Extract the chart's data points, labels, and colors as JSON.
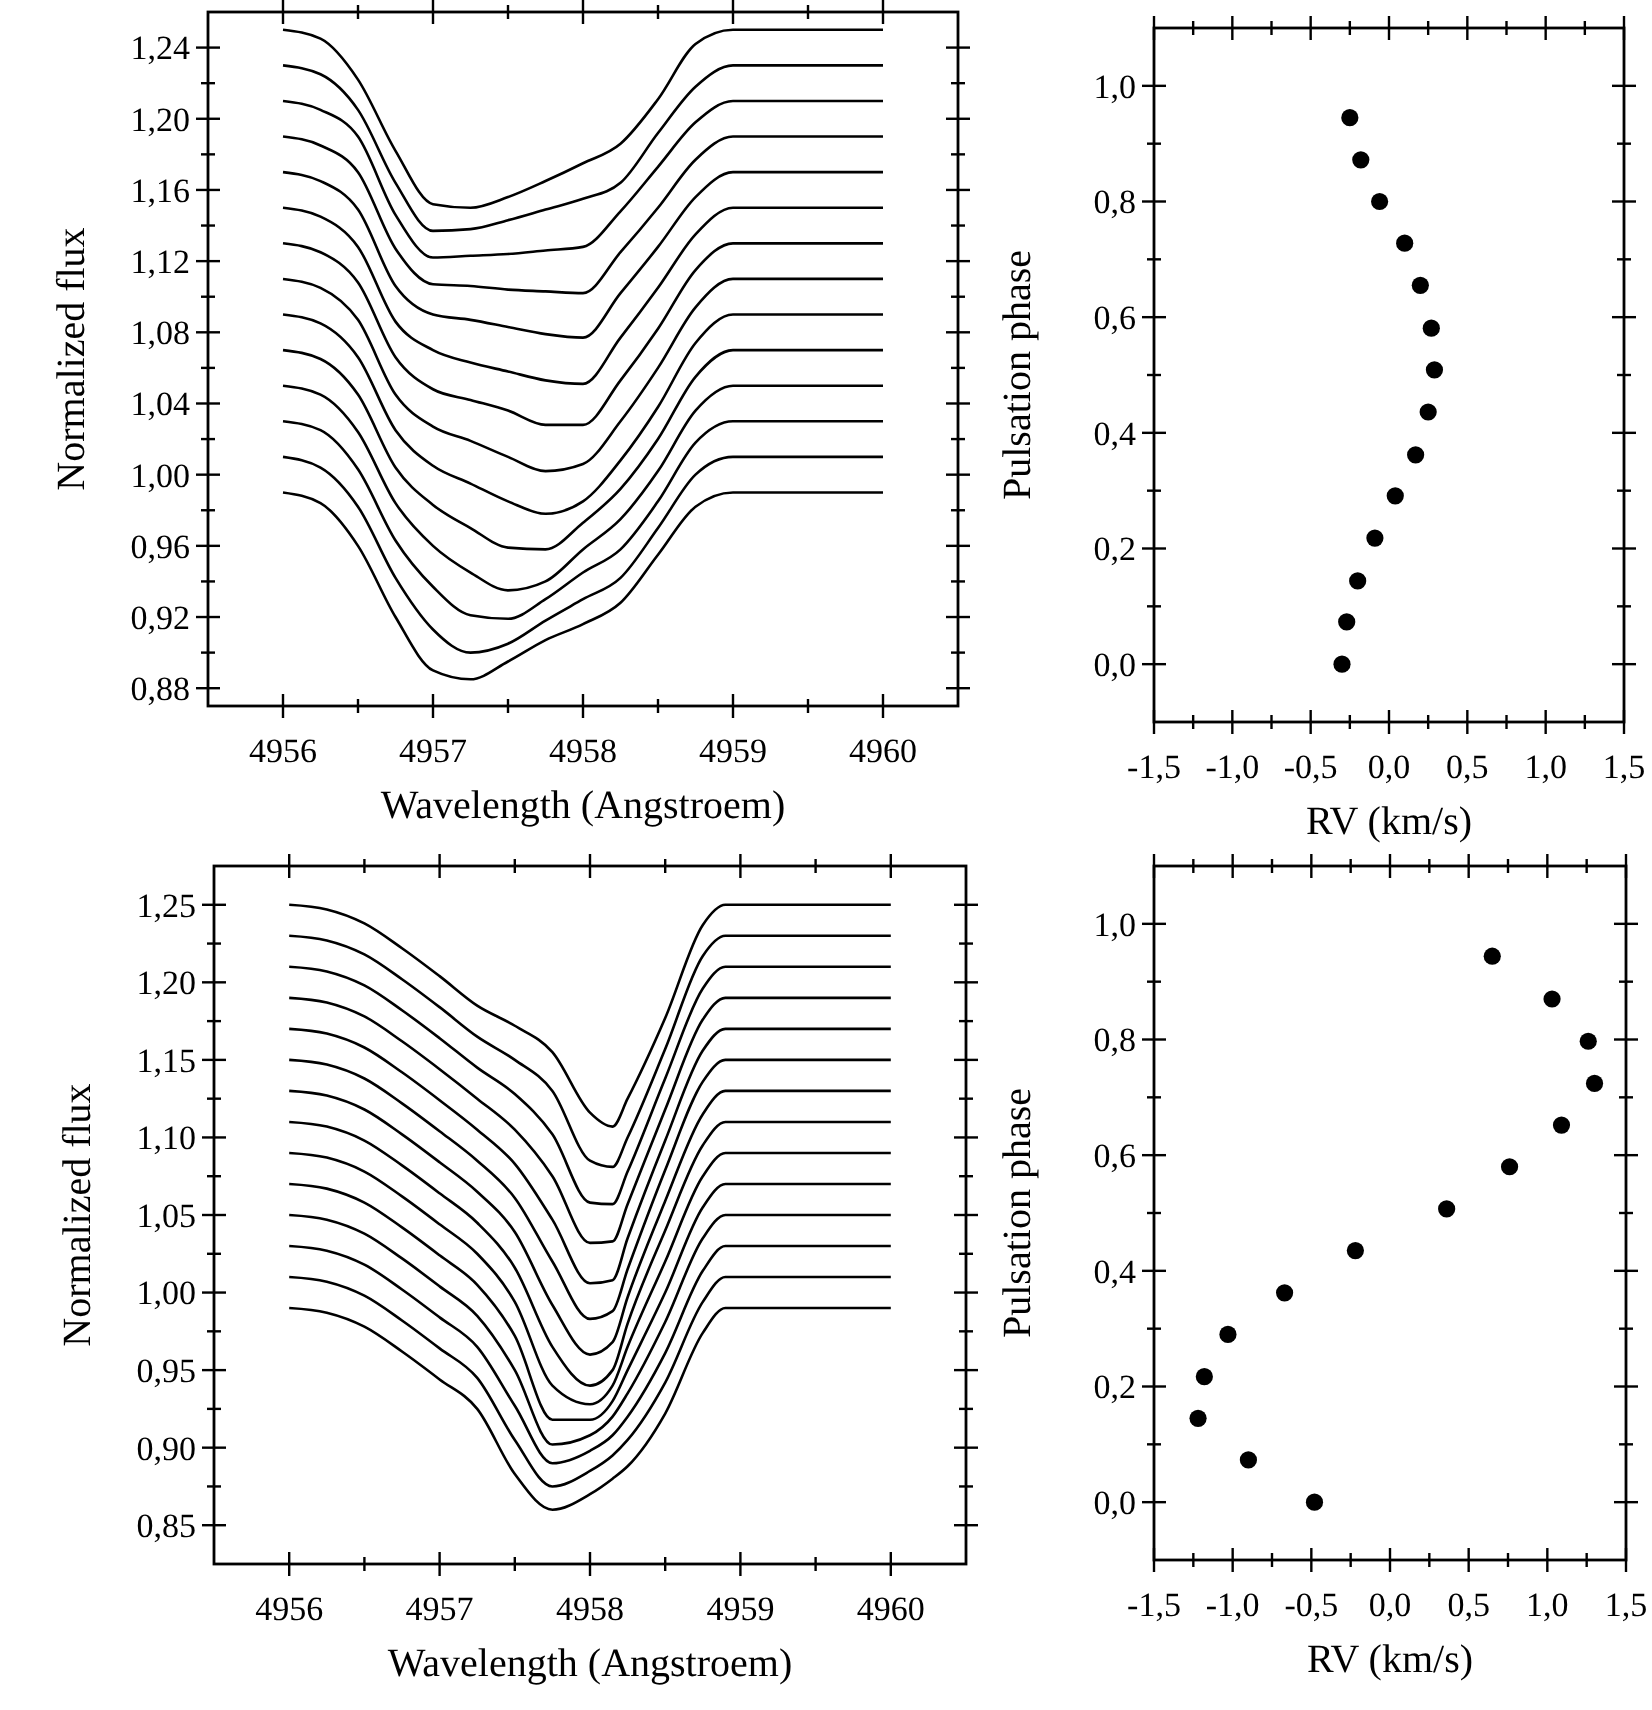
{
  "chart_data": [
    {
      "type": "line",
      "xlabel": "Wavelength (Angstroem)",
      "ylabel": "Normalized flux",
      "marker": "none",
      "line_style": "solid",
      "grid": false,
      "xlim": [
        4955.5,
        4960.5
      ],
      "ylim": [
        0.87,
        1.26
      ],
      "xticks": [
        {
          "value": 4956,
          "label": "4956"
        },
        {
          "value": 4956.5,
          "label": null
        },
        {
          "value": 4957,
          "label": "4957"
        },
        {
          "value": 4957.5,
          "label": null
        },
        {
          "value": 4958,
          "label": "4958"
        },
        {
          "value": 4958.5,
          "label": null
        },
        {
          "value": 4959,
          "label": "4959"
        },
        {
          "value": 4959.5,
          "label": null
        },
        {
          "value": 4960,
          "label": "4960"
        }
      ],
      "yticks": [
        {
          "value": 0.88,
          "label": "0,88"
        },
        {
          "value": 0.9,
          "label": null
        },
        {
          "value": 0.92,
          "label": "0,92"
        },
        {
          "value": 0.94,
          "label": null
        },
        {
          "value": 0.96,
          "label": "0,96"
        },
        {
          "value": 0.98,
          "label": null
        },
        {
          "value": 1.0,
          "label": "1,00"
        },
        {
          "value": 1.02,
          "label": null
        },
        {
          "value": 1.04,
          "label": "1,04"
        },
        {
          "value": 1.06,
          "label": null
        },
        {
          "value": 1.08,
          "label": "1,08"
        },
        {
          "value": 1.1,
          "label": null
        },
        {
          "value": 1.12,
          "label": "1,12"
        },
        {
          "value": 1.14,
          "label": null
        },
        {
          "value": 1.16,
          "label": "1,16"
        },
        {
          "value": 1.18,
          "label": null
        },
        {
          "value": 1.2,
          "label": "1,20"
        },
        {
          "value": 1.22,
          "label": null
        },
        {
          "value": 1.24,
          "label": "1,24"
        }
      ],
      "x": [
        4956,
        4956.25,
        4956.5,
        4956.75,
        4957,
        4957.25,
        4957.5,
        4957.75,
        4958,
        4958.25,
        4958.5,
        4958.75,
        4959,
        4960
      ],
      "series": [
        {
          "color": "#000000",
          "values": [
            0.99,
            0.984,
            0.96,
            0.92,
            0.89,
            0.885,
            0.895,
            0.907,
            0.916,
            0.928,
            0.955,
            0.982,
            0.99,
            0.99
          ]
        },
        {
          "color": "#000000",
          "values": [
            1.01,
            1.004,
            0.982,
            0.942,
            0.913,
            0.9,
            0.905,
            0.918,
            0.93,
            0.942,
            0.97,
            1.0,
            1.01,
            1.01
          ]
        },
        {
          "color": "#000000",
          "values": [
            1.03,
            1.025,
            1.003,
            0.963,
            0.937,
            0.921,
            0.919,
            0.93,
            0.945,
            0.958,
            0.985,
            1.018,
            1.03,
            1.03
          ]
        },
        {
          "color": "#000000",
          "values": [
            1.05,
            1.045,
            1.024,
            0.984,
            0.96,
            0.945,
            0.935,
            0.94,
            0.958,
            0.975,
            1.002,
            1.036,
            1.05,
            1.05
          ]
        },
        {
          "color": "#000000",
          "values": [
            1.07,
            1.065,
            1.045,
            1.004,
            0.983,
            0.97,
            0.959,
            0.958,
            0.973,
            0.992,
            1.02,
            1.055,
            1.07,
            1.07
          ]
        },
        {
          "color": "#000000",
          "values": [
            1.09,
            1.085,
            1.066,
            1.025,
            1.005,
            0.995,
            0.985,
            0.978,
            0.985,
            1.008,
            1.038,
            1.074,
            1.09,
            1.09
          ]
        },
        {
          "color": "#000000",
          "values": [
            1.11,
            1.105,
            1.087,
            1.045,
            1.027,
            1.019,
            1.01,
            1.002,
            1.006,
            1.03,
            1.06,
            1.094,
            1.11,
            1.11
          ]
        },
        {
          "color": "#000000",
          "values": [
            1.13,
            1.125,
            1.108,
            1.066,
            1.048,
            1.042,
            1.036,
            1.028,
            1.028,
            1.053,
            1.082,
            1.115,
            1.13,
            1.13
          ]
        },
        {
          "color": "#000000",
          "values": [
            1.15,
            1.145,
            1.128,
            1.086,
            1.07,
            1.063,
            1.058,
            1.053,
            1.051,
            1.077,
            1.105,
            1.135,
            1.15,
            1.15
          ]
        },
        {
          "color": "#000000",
          "values": [
            1.17,
            1.165,
            1.149,
            1.106,
            1.09,
            1.087,
            1.083,
            1.079,
            1.077,
            1.102,
            1.128,
            1.156,
            1.17,
            1.17
          ]
        },
        {
          "color": "#000000",
          "values": [
            1.19,
            1.185,
            1.17,
            1.127,
            1.107,
            1.106,
            1.104,
            1.103,
            1.102,
            1.125,
            1.15,
            1.177,
            1.19,
            1.19
          ]
        },
        {
          "color": "#000000",
          "values": [
            1.21,
            1.205,
            1.19,
            1.146,
            1.122,
            1.123,
            1.124,
            1.126,
            1.128,
            1.148,
            1.173,
            1.198,
            1.21,
            1.21
          ]
        },
        {
          "color": "#000000",
          "values": [
            1.23,
            1.225,
            1.205,
            1.164,
            1.137,
            1.138,
            1.143,
            1.149,
            1.155,
            1.164,
            1.192,
            1.218,
            1.23,
            1.23
          ]
        },
        {
          "color": "#000000",
          "values": [
            1.25,
            1.245,
            1.222,
            1.182,
            1.152,
            1.15,
            1.156,
            1.165,
            1.175,
            1.186,
            1.211,
            1.242,
            1.25,
            1.25
          ]
        }
      ]
    },
    {
      "type": "scatter",
      "xlabel": "RV (km/s)",
      "ylabel": "Pulsation phase",
      "marker": "circle",
      "grid": false,
      "xlim": [
        -1.5,
        1.5
      ],
      "ylim": [
        -0.1,
        1.1
      ],
      "xticks": [
        {
          "value": -1.5,
          "label": "-1,5"
        },
        {
          "value": -1.25,
          "label": null
        },
        {
          "value": -1.0,
          "label": "-1,0"
        },
        {
          "value": -0.75,
          "label": null
        },
        {
          "value": -0.5,
          "label": "-0,5"
        },
        {
          "value": -0.25,
          "label": null
        },
        {
          "value": 0,
          "label": "0,0"
        },
        {
          "value": 0.25,
          "label": null
        },
        {
          "value": 0.5,
          "label": "0,5"
        },
        {
          "value": 0.75,
          "label": null
        },
        {
          "value": 1.0,
          "label": "1,0"
        },
        {
          "value": 1.25,
          "label": null
        },
        {
          "value": 1.5,
          "label": "1,5"
        }
      ],
      "yticks": [
        {
          "value": 0,
          "label": "0,0"
        },
        {
          "value": 0.1,
          "label": null
        },
        {
          "value": 0.2,
          "label": "0,2"
        },
        {
          "value": 0.3,
          "label": null
        },
        {
          "value": 0.4,
          "label": "0,4"
        },
        {
          "value": 0.5,
          "label": null
        },
        {
          "value": 0.6,
          "label": "0,6"
        },
        {
          "value": 0.7,
          "label": null
        },
        {
          "value": 0.8,
          "label": "0,8"
        },
        {
          "value": 0.9,
          "label": null
        },
        {
          "value": 1.0,
          "label": "1,0"
        }
      ],
      "series": [
        {
          "color": "#000000",
          "x": [
            -0.3,
            -0.27,
            -0.2,
            -0.09,
            0.04,
            0.17,
            0.25,
            0.29,
            0.27,
            0.2,
            0.1,
            -0.06,
            -0.18,
            -0.25
          ],
          "values": [
            0.0,
            0.073,
            0.144,
            0.218,
            0.291,
            0.362,
            0.436,
            0.509,
            0.581,
            0.655,
            0.728,
            0.8,
            0.872,
            0.945
          ]
        }
      ]
    },
    {
      "type": "line",
      "xlabel": "Wavelength (Angstroem)",
      "ylabel": "Normalized flux",
      "marker": "none",
      "line_style": "solid",
      "grid": false,
      "xlim": [
        4955.5,
        4960.5
      ],
      "ylim": [
        0.825,
        1.275
      ],
      "xticks": [
        {
          "value": 4956,
          "label": "4956"
        },
        {
          "value": 4956.5,
          "label": null
        },
        {
          "value": 4957,
          "label": "4957"
        },
        {
          "value": 4957.5,
          "label": null
        },
        {
          "value": 4958,
          "label": "4958"
        },
        {
          "value": 4958.5,
          "label": null
        },
        {
          "value": 4959,
          "label": "4959"
        },
        {
          "value": 4959.5,
          "label": null
        },
        {
          "value": 4960,
          "label": "4960"
        }
      ],
      "yticks": [
        {
          "value": 0.85,
          "label": "0,85"
        },
        {
          "value": 0.875,
          "label": null
        },
        {
          "value": 0.9,
          "label": "0,90"
        },
        {
          "value": 0.925,
          "label": null
        },
        {
          "value": 0.95,
          "label": "0,95"
        },
        {
          "value": 0.975,
          "label": null
        },
        {
          "value": 1.0,
          "label": "1,00"
        },
        {
          "value": 1.025,
          "label": null
        },
        {
          "value": 1.05,
          "label": "1,05"
        },
        {
          "value": 1.075,
          "label": null
        },
        {
          "value": 1.1,
          "label": "1,10"
        },
        {
          "value": 1.125,
          "label": null
        },
        {
          "value": 1.15,
          "label": "1,15"
        },
        {
          "value": 1.175,
          "label": null
        },
        {
          "value": 1.2,
          "label": "1,20"
        },
        {
          "value": 1.225,
          "label": null
        },
        {
          "value": 1.25,
          "label": "1,25"
        }
      ],
      "x": [
        4956,
        4956.25,
        4956.5,
        4956.75,
        4957,
        4957.25,
        4957.5,
        4957.75,
        4958,
        4958.15,
        4958.25,
        4958.5,
        4958.75,
        4958.9,
        4960
      ],
      "series": [
        {
          "color": "#000000",
          "values": [
            0.99,
            0.987,
            0.978,
            0.962,
            0.944,
            0.925,
            0.883,
            0.86,
            0.87,
            0.88,
            0.888,
            0.922,
            0.974,
            0.99,
            0.99
          ]
        },
        {
          "color": "#000000",
          "values": [
            1.01,
            1.007,
            0.998,
            0.982,
            0.964,
            0.945,
            0.905,
            0.875,
            0.885,
            0.895,
            0.905,
            0.942,
            0.994,
            1.01,
            1.01
          ]
        },
        {
          "color": "#000000",
          "values": [
            1.03,
            1.027,
            1.018,
            1.002,
            0.984,
            0.965,
            0.927,
            0.89,
            0.898,
            0.908,
            0.92,
            0.961,
            1.014,
            1.03,
            1.03
          ]
        },
        {
          "color": "#000000",
          "values": [
            1.05,
            1.047,
            1.038,
            1.022,
            1.004,
            0.985,
            0.95,
            0.902,
            0.908,
            0.92,
            0.935,
            0.981,
            1.035,
            1.05,
            1.05
          ]
        },
        {
          "color": "#000000",
          "values": [
            1.07,
            1.067,
            1.058,
            1.042,
            1.024,
            1.005,
            0.972,
            0.918,
            0.918,
            0.93,
            0.95,
            1.0,
            1.055,
            1.07,
            1.07
          ]
        },
        {
          "color": "#000000",
          "values": [
            1.09,
            1.087,
            1.078,
            1.062,
            1.044,
            1.025,
            0.994,
            0.94,
            0.928,
            0.94,
            0.965,
            1.02,
            1.075,
            1.09,
            1.09
          ]
        },
        {
          "color": "#000000",
          "values": [
            1.11,
            1.107,
            1.098,
            1.082,
            1.064,
            1.045,
            1.016,
            0.965,
            0.94,
            0.95,
            0.98,
            1.04,
            1.095,
            1.11,
            1.11
          ]
        },
        {
          "color": "#000000",
          "values": [
            1.13,
            1.127,
            1.118,
            1.102,
            1.084,
            1.065,
            1.039,
            0.992,
            0.96,
            0.968,
            0.997,
            1.059,
            1.115,
            1.13,
            1.13
          ]
        },
        {
          "color": "#000000",
          "values": [
            1.15,
            1.147,
            1.138,
            1.122,
            1.104,
            1.085,
            1.061,
            1.02,
            0.983,
            0.988,
            1.015,
            1.079,
            1.136,
            1.15,
            1.15
          ]
        },
        {
          "color": "#000000",
          "values": [
            1.17,
            1.167,
            1.158,
            1.142,
            1.124,
            1.105,
            1.083,
            1.047,
            1.006,
            1.008,
            1.035,
            1.098,
            1.156,
            1.17,
            1.17
          ]
        },
        {
          "color": "#000000",
          "values": [
            1.19,
            1.187,
            1.178,
            1.162,
            1.144,
            1.125,
            1.105,
            1.075,
            1.032,
            1.033,
            1.057,
            1.118,
            1.176,
            1.19,
            1.19
          ]
        },
        {
          "color": "#000000",
          "values": [
            1.21,
            1.207,
            1.198,
            1.182,
            1.164,
            1.145,
            1.128,
            1.102,
            1.058,
            1.057,
            1.078,
            1.138,
            1.196,
            1.21,
            1.21
          ]
        },
        {
          "color": "#000000",
          "values": [
            1.23,
            1.227,
            1.218,
            1.202,
            1.184,
            1.165,
            1.15,
            1.13,
            1.085,
            1.081,
            1.1,
            1.157,
            1.217,
            1.23,
            1.23
          ]
        },
        {
          "color": "#000000",
          "values": [
            1.25,
            1.247,
            1.238,
            1.222,
            1.204,
            1.185,
            1.172,
            1.155,
            1.116,
            1.107,
            1.125,
            1.177,
            1.237,
            1.25,
            1.25
          ]
        }
      ]
    },
    {
      "type": "scatter",
      "xlabel": "RV (km/s)",
      "ylabel": "Pulsation phase",
      "marker": "circle",
      "grid": false,
      "xlim": [
        -1.5,
        1.5
      ],
      "ylim": [
        -0.1,
        1.1
      ],
      "xticks": [
        {
          "value": -1.5,
          "label": "-1,5"
        },
        {
          "value": -1.25,
          "label": null
        },
        {
          "value": -1.0,
          "label": "-1,0"
        },
        {
          "value": -0.75,
          "label": null
        },
        {
          "value": -0.5,
          "label": "-0,5"
        },
        {
          "value": -0.25,
          "label": null
        },
        {
          "value": 0,
          "label": "0,0"
        },
        {
          "value": 0.25,
          "label": null
        },
        {
          "value": 0.5,
          "label": "0,5"
        },
        {
          "value": 0.75,
          "label": null
        },
        {
          "value": 1.0,
          "label": "1,0"
        },
        {
          "value": 1.25,
          "label": null
        },
        {
          "value": 1.5,
          "label": "1,5"
        }
      ],
      "yticks": [
        {
          "value": 0,
          "label": "0,0"
        },
        {
          "value": 0.1,
          "label": null
        },
        {
          "value": 0.2,
          "label": "0,2"
        },
        {
          "value": 0.3,
          "label": null
        },
        {
          "value": 0.4,
          "label": "0,4"
        },
        {
          "value": 0.5,
          "label": null
        },
        {
          "value": 0.6,
          "label": "0,6"
        },
        {
          "value": 0.7,
          "label": null
        },
        {
          "value": 0.8,
          "label": "0,8"
        },
        {
          "value": 0.9,
          "label": null
        },
        {
          "value": 1.0,
          "label": "1,0"
        }
      ],
      "series": [
        {
          "color": "#000000",
          "x": [
            -0.48,
            -0.9,
            -1.22,
            -1.18,
            -1.03,
            -0.67,
            -0.22,
            0.36,
            0.76,
            1.09,
            1.3,
            1.26,
            1.03,
            0.65
          ],
          "values": [
            0.0,
            0.073,
            0.145,
            0.217,
            0.29,
            0.362,
            0.435,
            0.507,
            0.58,
            0.652,
            0.724,
            0.797,
            0.87,
            0.944
          ]
        }
      ]
    }
  ]
}
